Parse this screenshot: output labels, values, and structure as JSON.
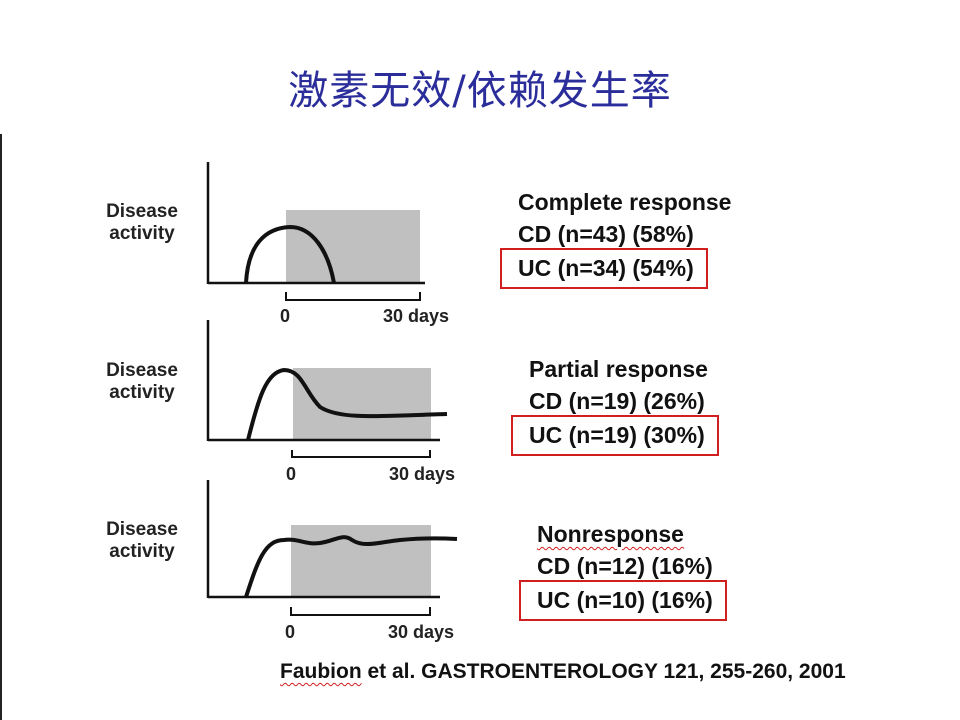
{
  "title": "激素无效/依赖发生率",
  "panels": [
    {
      "ylabel": "Disease\nactivity",
      "tick_start": "0",
      "tick_end": "30 days",
      "category": "Complete response",
      "cd": "CD (n=43) (58%)",
      "uc": "UC (n=34) (54%)",
      "curve": "rises and returns to baseline"
    },
    {
      "ylabel": "Disease\nactivity",
      "tick_start": "0",
      "tick_end": "30 days",
      "category": "Partial response",
      "cd": "CD (n=19) (26%)",
      "uc": "UC (n=19) (30%)",
      "curve": "peaks then settles at reduced level"
    },
    {
      "ylabel": "Disease\nactivity",
      "tick_start": "0",
      "tick_end": "30 days",
      "category": "Nonresponse",
      "cd": "CD (n=12) (16%)",
      "uc": "UC (n=10) (16%)",
      "curve": "rises and stays high"
    }
  ],
  "citation": {
    "author": "Faubion",
    "rest": " et al. GASTROENTEROLOGY 121, 255-260, 2001"
  },
  "colors": {
    "title": "#2b2e9a",
    "highlight_box": "#d11f1f",
    "shaded_period": "#c0c0c0"
  }
}
